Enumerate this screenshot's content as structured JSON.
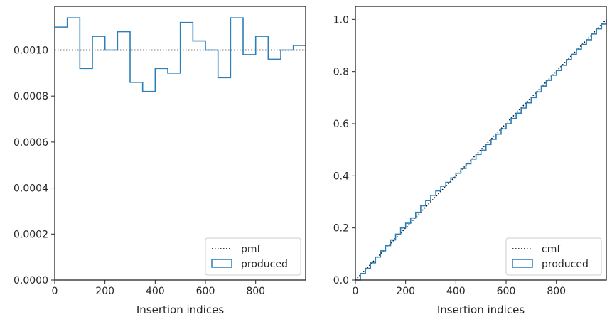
{
  "chart_data": [
    {
      "type": "step",
      "xlabel": "Insertion indices",
      "ylabel": "",
      "xlim": [
        0,
        999
      ],
      "ylim": [
        0,
        0.00119
      ],
      "xticks": [
        0,
        200,
        400,
        600,
        800
      ],
      "xtick_labels": [
        "0",
        "200",
        "400",
        "600",
        "800"
      ],
      "yticks": [
        0,
        0.0002,
        0.0004,
        0.0006,
        0.0008,
        0.001
      ],
      "ytick_labels": [
        "0.0000",
        "0.0002",
        "0.0004",
        "0.0006",
        "0.0008",
        "0.0010"
      ],
      "legend_position": "lower-right",
      "reference_line": {
        "name": "pmf",
        "value": 0.001,
        "style": "dotted",
        "color": "#000000"
      },
      "series": [
        {
          "name": "produced",
          "color": "#2c7fb8",
          "bin_edges": [
            0,
            50,
            100,
            150,
            200,
            250,
            300,
            350,
            400,
            450,
            500,
            550,
            600,
            650,
            700,
            750,
            800,
            850,
            900,
            950,
            1000
          ],
          "values": [
            0.0011,
            0.00114,
            0.00092,
            0.00106,
            0.001,
            0.00108,
            0.00086,
            0.00082,
            0.00092,
            0.0009,
            0.00112,
            0.00104,
            0.001,
            0.00088,
            0.00114,
            0.00098,
            0.00106,
            0.00096,
            0.001,
            0.00102
          ]
        }
      ]
    },
    {
      "type": "step",
      "xlabel": "Insertion indices",
      "ylabel": "",
      "xlim": [
        0,
        999
      ],
      "ylim": [
        0,
        1.05
      ],
      "xticks": [
        0,
        200,
        400,
        600,
        800
      ],
      "xtick_labels": [
        "0",
        "200",
        "400",
        "600",
        "800"
      ],
      "yticks": [
        0,
        0.2,
        0.4,
        0.6,
        0.8,
        1.0
      ],
      "ytick_labels": [
        "0.0",
        "0.2",
        "0.4",
        "0.6",
        "0.8",
        "1.0"
      ],
      "legend_position": "lower-right",
      "reference_line": {
        "name": "cmf",
        "points": [
          [
            0,
            0
          ],
          [
            999,
            1.0
          ]
        ],
        "style": "dotted",
        "color": "#000000"
      },
      "series": [
        {
          "name": "produced",
          "color": "#2c7fb8",
          "x": [
            0,
            20,
            40,
            60,
            80,
            100,
            120,
            140,
            160,
            180,
            200,
            220,
            240,
            260,
            280,
            300,
            320,
            340,
            360,
            380,
            400,
            420,
            440,
            460,
            480,
            500,
            520,
            540,
            560,
            580,
            600,
            620,
            640,
            660,
            680,
            700,
            720,
            740,
            760,
            780,
            800,
            820,
            840,
            860,
            880,
            900,
            920,
            940,
            960,
            980,
            999
          ],
          "y": [
            0.0,
            0.025,
            0.045,
            0.066,
            0.088,
            0.112,
            0.132,
            0.154,
            0.176,
            0.2,
            0.218,
            0.238,
            0.26,
            0.285,
            0.305,
            0.325,
            0.342,
            0.36,
            0.375,
            0.392,
            0.41,
            0.428,
            0.446,
            0.464,
            0.482,
            0.498,
            0.52,
            0.54,
            0.56,
            0.58,
            0.6,
            0.62,
            0.64,
            0.66,
            0.68,
            0.7,
            0.722,
            0.744,
            0.766,
            0.786,
            0.804,
            0.824,
            0.846,
            0.866,
            0.886,
            0.904,
            0.922,
            0.944,
            0.964,
            0.982,
            1.0
          ]
        }
      ]
    }
  ]
}
